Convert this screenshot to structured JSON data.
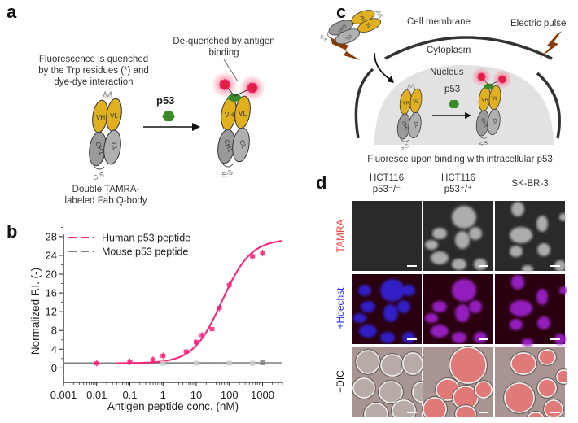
{
  "panels": {
    "a": {
      "label": "a",
      "quenched_text": [
        "Fluorescence is quenched",
        "by the Trp residues (*) and",
        "dye-dye interaction"
      ],
      "dequenched_text": [
        "De-quenched by antigen",
        "binding"
      ],
      "antigen_label": "p53",
      "caption": [
        "Double TAMRA-",
        "labeled Fab Q-body"
      ],
      "domain_labels": {
        "vh": "VH",
        "vl": "VL",
        "ch1": "CH1",
        "cl": "CL",
        "disulfide": "S-S"
      }
    },
    "b": {
      "label": "b"
    },
    "c": {
      "label": "c",
      "cell_membrane": "Cell membrane",
      "electric_pulse": "Electric pulse",
      "cytoplasm": "Cytoplasm",
      "nucleus": "Nucleus",
      "antigen_label": "p53",
      "caption": "Fluoresce upon binding with intracellular p53"
    },
    "d": {
      "label": "d",
      "columns": [
        {
          "line1": "HCT116",
          "line2": "p53⁻/⁻"
        },
        {
          "line1": "HCT116",
          "line2": "p53⁺/⁺"
        },
        {
          "line1": "",
          "line2": "SK-BR-3"
        }
      ],
      "rows": [
        {
          "label": "TAMRA",
          "color": "#ff3b3b"
        },
        {
          "label": "+Hoechst",
          "color": "#2a2aff"
        },
        {
          "label": "+DIC",
          "color": "#111111"
        }
      ]
    }
  },
  "colors": {
    "human": "#ff1f7a",
    "mouse": "#7f7f7f",
    "fab_variable": "#e0b020",
    "fab_constant": "#9a9a9a",
    "antigen": "#3a8a2a",
    "dye": "#e02040",
    "lightning": "#8b3a0a"
  },
  "chart_data": {
    "type": "scatter",
    "xlabel": "Antigen peptide conc. (nM)",
    "ylabel": "Normalized F.I. (-)",
    "xscale": "log",
    "xlim": [
      0.001,
      4000
    ],
    "ylim": [
      -1.5,
      28.5
    ],
    "xticks": [
      "0.001",
      "0.01",
      "0.1",
      "1",
      "10",
      "100",
      "1000"
    ],
    "yticks": [
      "0",
      "4",
      "8",
      "12",
      "16",
      "20",
      "24",
      "28"
    ],
    "legend_placement": "top-left",
    "grid": false,
    "series": [
      {
        "name": "Human p53 peptide",
        "color": "#ff1f7a",
        "fit": "sigmoidal",
        "x": [
          0.01,
          0.1,
          0.5,
          1,
          5,
          10,
          15,
          30,
          50,
          100,
          500,
          1000
        ],
        "y": [
          1.0,
          1.3,
          1.8,
          2.6,
          3.5,
          5.5,
          7.0,
          8.3,
          12.8,
          17.7,
          23.8,
          24.5
        ]
      },
      {
        "name": "Mouse p53 peptide",
        "color": "#7f7f7f",
        "fit": "flat",
        "x": [
          1,
          10,
          100,
          500,
          1000
        ],
        "y": [
          1.0,
          1.0,
          1.0,
          1.0,
          1.1
        ]
      }
    ]
  }
}
